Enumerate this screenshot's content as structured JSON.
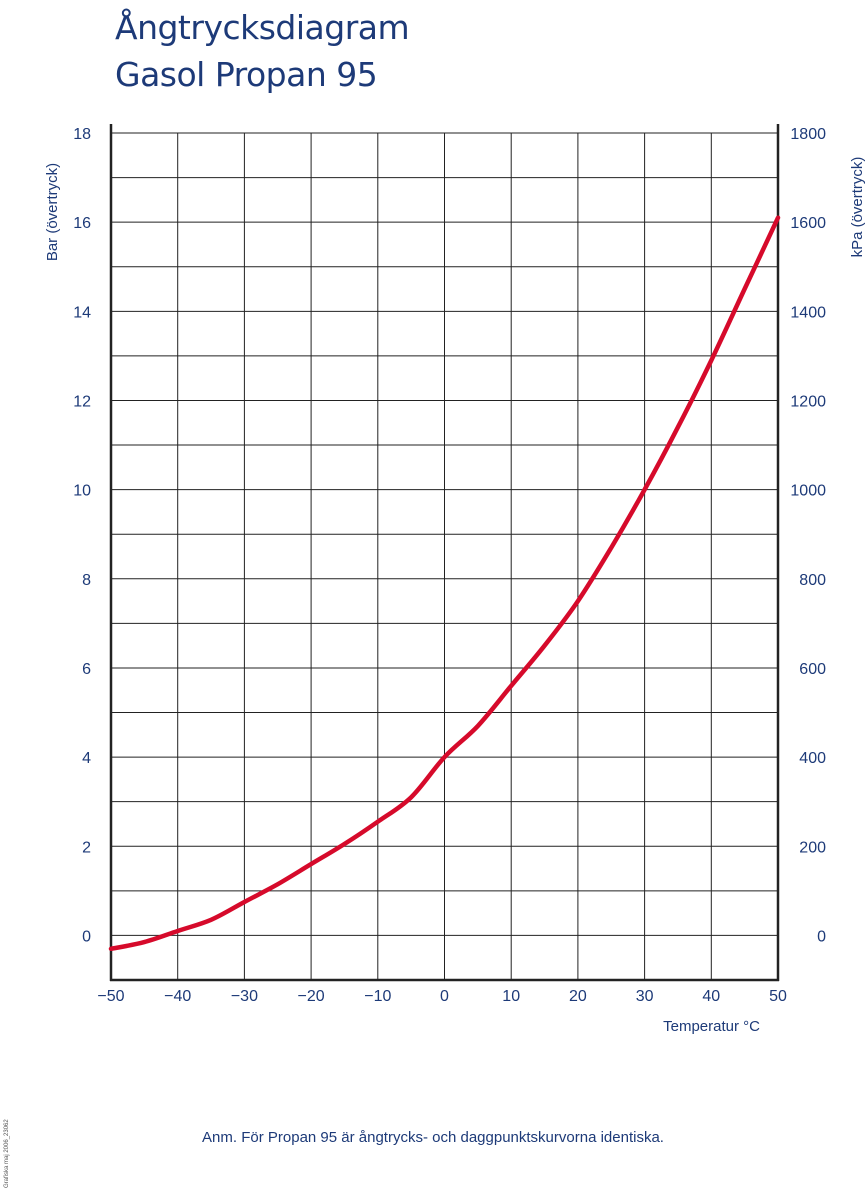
{
  "page": {
    "title_line1": "Ångtrycksdiagram",
    "title_line2": "Gasol Propan 95",
    "note": "Anm. För Propan 95 är ångtrycks- och daggpunktskurvorna identiska.",
    "credit": "Grafiska maj 2006_23062"
  },
  "colors": {
    "text": "#1d3a78",
    "curve": "#d60a2b",
    "grid": "#222222",
    "background": "#ffffff"
  },
  "chart_data": {
    "type": "line",
    "title": "Ångtrycksdiagram Gasol Propan 95",
    "xlabel": "Temperatur °C",
    "ylabel": "Bar (övertryck)",
    "y2label": "kPa (övertryck)",
    "xlim": [
      -50,
      50
    ],
    "ylim": [
      -1,
      18
    ],
    "y2lim": [
      -100,
      1800
    ],
    "grid": true,
    "x_ticks": [
      -50,
      -40,
      -30,
      -20,
      -10,
      0,
      10,
      20,
      30,
      40,
      50
    ],
    "x_tick_labels": [
      "−50",
      "−40",
      "−30",
      "−20",
      "−10",
      "0",
      "10",
      "20",
      "30",
      "40",
      "50"
    ],
    "y_ticks": [
      0,
      2,
      4,
      6,
      8,
      10,
      12,
      14,
      16,
      18
    ],
    "y_tick_labels": [
      "0",
      "2",
      "4",
      "6",
      "8",
      "10",
      "12",
      "14",
      "16",
      "18"
    ],
    "y2_ticks": [
      0,
      200,
      400,
      600,
      800,
      1000,
      1200,
      1400,
      1600,
      1800
    ],
    "y2_tick_labels": [
      "0",
      "200",
      "400",
      "600",
      "800",
      "1000",
      "1200",
      "1400",
      "1600",
      "1800"
    ],
    "series": [
      {
        "x": [
          -50,
          -45,
          -40,
          -35,
          -30,
          -25,
          -20,
          -15,
          -10,
          -5,
          0,
          5,
          10,
          15,
          20,
          25,
          30,
          35,
          40,
          45,
          50
        ],
        "y": [
          -0.3,
          -0.15,
          0.1,
          0.35,
          0.75,
          1.15,
          1.6,
          2.05,
          2.55,
          3.1,
          4.0,
          4.7,
          5.6,
          6.5,
          7.5,
          8.7,
          10.0,
          11.4,
          12.9,
          14.5,
          16.1
        ]
      }
    ]
  }
}
